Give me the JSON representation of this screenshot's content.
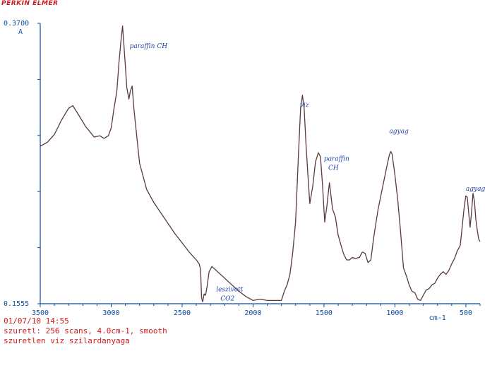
{
  "header": {
    "brand": "PERKIN ELMER"
  },
  "footer": {
    "line1": "01/07/10 14:55",
    "line2": "szuretl: 256 scans, 4.0cm-1, smooth",
    "line3": "szuretlen viz szilardanyaga"
  },
  "colors": {
    "axis": "#0b4ea2",
    "trace": "#5a3a3e",
    "text_red": "#d11a1a",
    "handwriting": "#1e3ea8"
  },
  "chart_data": {
    "type": "line",
    "title": "",
    "xlabel": "cm-1",
    "ylabel": "A",
    "xlim": [
      3500,
      400
    ],
    "ylim": [
      0.1555,
      0.37
    ],
    "x_reversed": true,
    "grid": false,
    "y_ticks": [
      {
        "value": 0.37,
        "label": "0.3700"
      },
      {
        "value": 0.1555,
        "label": "0.1555"
      }
    ],
    "x_ticks": [
      {
        "value": 3500,
        "label": "3500"
      },
      {
        "value": 3000,
        "label": "3000"
      },
      {
        "value": 2500,
        "label": "2500"
      },
      {
        "value": 2000,
        "label": "2000"
      },
      {
        "value": 1500,
        "label": "1500"
      },
      {
        "value": 1000,
        "label": "1000"
      },
      {
        "value": 500,
        "label": "500"
      }
    ],
    "annotations": [
      {
        "text": "paraffin CH",
        "x": 2870,
        "y": 0.351
      },
      {
        "text": "leszivott",
        "x": 2260,
        "y": 0.165
      },
      {
        "text": "CO2",
        "x": 2230,
        "y": 0.158
      },
      {
        "text": "viz",
        "x": 1670,
        "y": 0.306
      },
      {
        "text": "paraffin",
        "x": 1500,
        "y": 0.265
      },
      {
        "text": "CH",
        "x": 1470,
        "y": 0.258
      },
      {
        "text": "agyag",
        "x": 1040,
        "y": 0.286
      },
      {
        "text": "agyag",
        "x": 500,
        "y": 0.242
      }
    ],
    "series": [
      {
        "x": [
          3500,
          3450,
          3400,
          3350,
          3300,
          3270,
          3230,
          3180,
          3120,
          3080,
          3050,
          3020,
          3000,
          2980,
          2960,
          2945,
          2930,
          2920,
          2905,
          2890,
          2875,
          2865,
          2852,
          2840,
          2800,
          2750,
          2700,
          2650,
          2600,
          2550,
          2500,
          2450,
          2400,
          2380,
          2370,
          2363,
          2355,
          2345,
          2335,
          2325,
          2310,
          2290,
          2250,
          2200,
          2150,
          2100,
          2050,
          2000,
          1950,
          1900,
          1850,
          1800,
          1780,
          1760,
          1740,
          1720,
          1700,
          1680,
          1665,
          1652,
          1640,
          1625,
          1600,
          1580,
          1560,
          1540,
          1525,
          1510,
          1495,
          1480,
          1470,
          1462,
          1455,
          1440,
          1420,
          1400,
          1380,
          1360,
          1340,
          1320,
          1300,
          1280,
          1250,
          1230,
          1210,
          1190,
          1170,
          1150,
          1120,
          1090,
          1060,
          1040,
          1030,
          1020,
          1000,
          980,
          960,
          940,
          920,
          900,
          880,
          860,
          840,
          820,
          800,
          780,
          760,
          740,
          720,
          700,
          680,
          660,
          640,
          620,
          600,
          580,
          560,
          540,
          530,
          520,
          510,
          500,
          490,
          480,
          470,
          460,
          450,
          440,
          430,
          420,
          410,
          400
        ],
        "y": [
          0.276,
          0.279,
          0.285,
          0.296,
          0.305,
          0.307,
          0.3,
          0.291,
          0.283,
          0.284,
          0.282,
          0.284,
          0.29,
          0.305,
          0.318,
          0.34,
          0.358,
          0.368,
          0.345,
          0.321,
          0.312,
          0.318,
          0.322,
          0.305,
          0.263,
          0.243,
          0.233,
          0.225,
          0.217,
          0.209,
          0.202,
          0.195,
          0.189,
          0.186,
          0.182,
          0.16,
          0.157,
          0.163,
          0.162,
          0.168,
          0.18,
          0.184,
          0.18,
          0.175,
          0.17,
          0.165,
          0.161,
          0.158,
          0.159,
          0.158,
          0.158,
          0.158,
          0.165,
          0.17,
          0.178,
          0.195,
          0.218,
          0.27,
          0.305,
          0.315,
          0.305,
          0.274,
          0.232,
          0.245,
          0.264,
          0.271,
          0.268,
          0.246,
          0.218,
          0.23,
          0.24,
          0.248,
          0.242,
          0.228,
          0.222,
          0.208,
          0.2,
          0.193,
          0.189,
          0.189,
          0.191,
          0.19,
          0.191,
          0.195,
          0.194,
          0.187,
          0.189,
          0.206,
          0.227,
          0.243,
          0.259,
          0.269,
          0.272,
          0.27,
          0.254,
          0.235,
          0.21,
          0.183,
          0.177,
          0.17,
          0.165,
          0.164,
          0.159,
          0.158,
          0.162,
          0.166,
          0.167,
          0.17,
          0.171,
          0.175,
          0.178,
          0.18,
          0.178,
          0.181,
          0.186,
          0.19,
          0.196,
          0.2,
          0.21,
          0.221,
          0.231,
          0.238,
          0.237,
          0.225,
          0.214,
          0.225,
          0.24,
          0.234,
          0.22,
          0.212,
          0.205,
          0.203
        ]
      }
    ]
  }
}
